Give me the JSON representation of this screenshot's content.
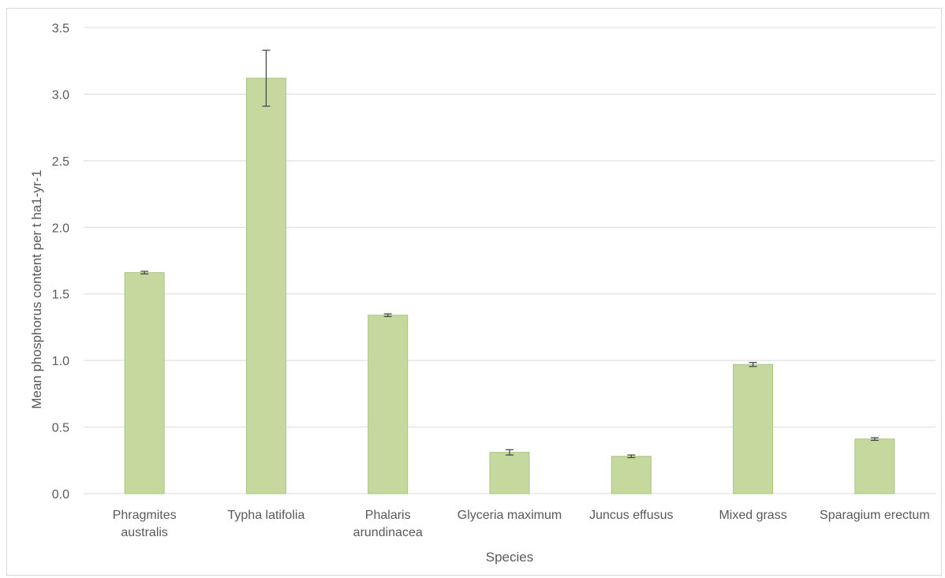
{
  "chart_data": {
    "type": "bar",
    "title": "",
    "xlabel": "Species",
    "ylabel": "Mean phosphorus content per t ha1-yr-1",
    "categories": [
      [
        "Phragmites",
        "australis"
      ],
      [
        "Typha latifolia"
      ],
      [
        "Phalaris",
        "arundinacea"
      ],
      [
        "Glyceria maximum"
      ],
      [
        "Juncus effusus"
      ],
      [
        "Mixed grass"
      ],
      [
        "Sparagium erectum"
      ]
    ],
    "values": [
      1.66,
      3.12,
      1.34,
      0.31,
      0.28,
      0.97,
      0.41
    ],
    "errors": [
      0.01,
      0.21,
      0.01,
      0.02,
      0.01,
      0.015,
      0.01
    ],
    "ylim": [
      0,
      3.5
    ],
    "yticks": [
      "0.0",
      "0.5",
      "1.0",
      "1.5",
      "2.0",
      "2.5",
      "3.0",
      "3.5"
    ],
    "grid": true,
    "legend": "none",
    "colors": {
      "bar_fill": "#c5d99e",
      "bar_stroke": "#a9c47f",
      "grid": "#d9d9d9",
      "error_bar": "#404040",
      "text": "#595959"
    }
  }
}
